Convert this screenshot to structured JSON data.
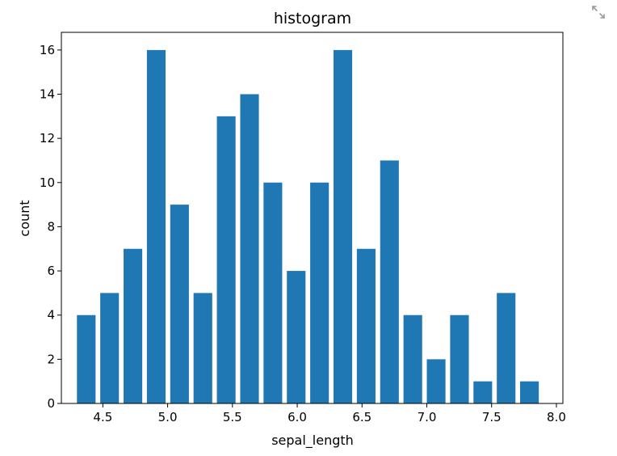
{
  "chart_data": {
    "type": "bar",
    "title": "histogram",
    "xlabel": "sepal_length",
    "ylabel": "count",
    "xlim": [
      4.18,
      8.05
    ],
    "ylim": [
      0,
      16.8
    ],
    "bar_color": "#1f77b4",
    "bin_width": 0.18,
    "bars": [
      {
        "x": 4.3,
        "value": 4
      },
      {
        "x": 4.48,
        "value": 5
      },
      {
        "x": 4.66,
        "value": 7
      },
      {
        "x": 4.84,
        "value": 16
      },
      {
        "x": 5.02,
        "value": 9
      },
      {
        "x": 5.2,
        "value": 5
      },
      {
        "x": 5.38,
        "value": 13
      },
      {
        "x": 5.56,
        "value": 14
      },
      {
        "x": 5.74,
        "value": 10
      },
      {
        "x": 5.92,
        "value": 6
      },
      {
        "x": 6.1,
        "value": 10
      },
      {
        "x": 6.28,
        "value": 16
      },
      {
        "x": 6.46,
        "value": 7
      },
      {
        "x": 6.64,
        "value": 11
      },
      {
        "x": 6.82,
        "value": 4
      },
      {
        "x": 7.0,
        "value": 2
      },
      {
        "x": 7.18,
        "value": 4
      },
      {
        "x": 7.36,
        "value": 1
      },
      {
        "x": 7.54,
        "value": 5
      },
      {
        "x": 7.72,
        "value": 1
      }
    ],
    "x_ticks": [
      {
        "value": 4.5,
        "label": "4.5"
      },
      {
        "value": 5.0,
        "label": "5.0"
      },
      {
        "value": 5.5,
        "label": "5.5"
      },
      {
        "value": 6.0,
        "label": "6.0"
      },
      {
        "value": 6.5,
        "label": "6.5"
      },
      {
        "value": 7.0,
        "label": "7.0"
      },
      {
        "value": 7.5,
        "label": "7.5"
      },
      {
        "value": 8.0,
        "label": "8.0"
      }
    ],
    "y_ticks": [
      {
        "value": 0,
        "label": "0"
      },
      {
        "value": 2,
        "label": "2"
      },
      {
        "value": 4,
        "label": "4"
      },
      {
        "value": 6,
        "label": "6"
      },
      {
        "value": 8,
        "label": "8"
      },
      {
        "value": 10,
        "label": "10"
      },
      {
        "value": 12,
        "label": "12"
      },
      {
        "value": 14,
        "label": "14"
      },
      {
        "value": 16,
        "label": "16"
      }
    ],
    "grid": false,
    "legend": "none"
  },
  "toolbar": {
    "expand_icon": "expand-arrows-icon"
  }
}
